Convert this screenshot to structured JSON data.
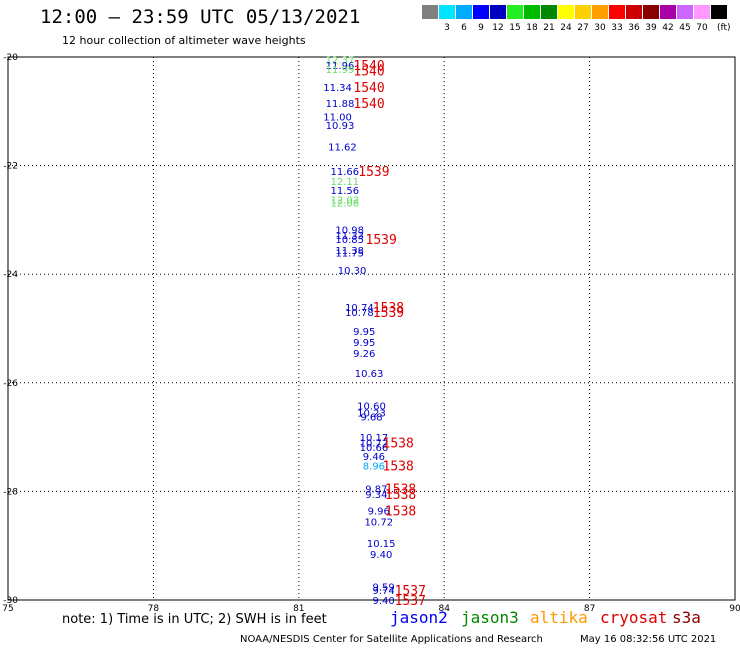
{
  "header": {
    "title": "12:00 — 23:59 UTC 05/13/2021",
    "subtitle": "12 hour collection of altimeter wave heights"
  },
  "colorbar": {
    "colors": [
      "#808080",
      "#00e5ff",
      "#00aaff",
      "#0000ff",
      "#0000c0",
      "#22ee22",
      "#00bb00",
      "#008800",
      "#ffff00",
      "#ffd000",
      "#ffa000",
      "#ff0000",
      "#cc0000",
      "#880000",
      "#aa00aa",
      "#cc66ff",
      "#ff99ff",
      "#000000"
    ],
    "labels": [
      "3",
      "6",
      "9",
      "12",
      "15",
      "18",
      "21",
      "24",
      "27",
      "30",
      "33",
      "36",
      "39",
      "42",
      "45",
      "70",
      "(ft)"
    ]
  },
  "notes": {
    "note": "note: 1) Time is in UTC; 2) SWH is in feet",
    "satellites": [
      {
        "name": "jason2",
        "color": "#0000ff"
      },
      {
        "name": "jason3",
        "color": "#008800"
      },
      {
        "name": "altika",
        "color": "#ff9900"
      },
      {
        "name": "cryosat",
        "color": "#dd0000"
      },
      {
        "name": "s3a",
        "color": "#880000"
      }
    ],
    "footer_left": "NOAA/NESDIS Center for Satellite Applications and Research",
    "footer_right": "May 16 08:32:56 UTC 2021"
  },
  "chart_data": {
    "type": "scatter",
    "title": "12:00 — 23:59 UTC 05/13/2021",
    "subtitle": "12 hour collection of altimeter wave heights",
    "x_ticks": [
      75,
      78,
      81,
      84,
      87,
      90
    ],
    "y_ticks": [
      -20,
      -22,
      -24,
      -26,
      -28,
      -30
    ],
    "xlim": [
      75,
      90
    ],
    "ylim": [
      -30,
      -20
    ],
    "grid": true,
    "swh_labels": [
      {
        "lon": 81.85,
        "lat": -20.05,
        "text": "12.37",
        "color": "#66dd66"
      },
      {
        "lon": 81.85,
        "lat": -20.15,
        "text": "11.96",
        "color": "#0000cc"
      },
      {
        "lon": 81.85,
        "lat": -20.22,
        "text": "11.99",
        "color": "#66dd66"
      },
      {
        "lon": 81.8,
        "lat": -20.55,
        "text": "11.34",
        "color": "#0000cc"
      },
      {
        "lon": 81.85,
        "lat": -20.85,
        "text": "11.88",
        "color": "#0000cc"
      },
      {
        "lon": 81.8,
        "lat": -21.1,
        "text": "11.00",
        "color": "#0000cc"
      },
      {
        "lon": 81.85,
        "lat": -21.25,
        "text": "10.93",
        "color": "#0000cc"
      },
      {
        "lon": 81.9,
        "lat": -21.65,
        "text": "11.62",
        "color": "#0000cc"
      },
      {
        "lon": 81.95,
        "lat": -22.1,
        "text": "11.66",
        "color": "#0000cc"
      },
      {
        "lon": 81.95,
        "lat": -22.28,
        "text": "12.11",
        "color": "#66dd66"
      },
      {
        "lon": 81.95,
        "lat": -22.45,
        "text": "11.56",
        "color": "#0000cc"
      },
      {
        "lon": 81.95,
        "lat": -22.62,
        "text": "12.02",
        "color": "#66dd66"
      },
      {
        "lon": 81.95,
        "lat": -22.68,
        "text": "12.08",
        "color": "#66dd66"
      },
      {
        "lon": 82.05,
        "lat": -23.18,
        "text": "10.98",
        "color": "#0000cc"
      },
      {
        "lon": 82.05,
        "lat": -23.28,
        "text": "11.33",
        "color": "#0000cc"
      },
      {
        "lon": 82.05,
        "lat": -23.35,
        "text": "10.85",
        "color": "#0000cc"
      },
      {
        "lon": 82.05,
        "lat": -23.55,
        "text": "11.38",
        "color": "#0000cc"
      },
      {
        "lon": 82.05,
        "lat": -23.6,
        "text": "11.75",
        "color": "#0000cc"
      },
      {
        "lon": 82.1,
        "lat": -23.92,
        "text": "10.30",
        "color": "#0000cc"
      },
      {
        "lon": 82.25,
        "lat": -24.6,
        "text": "10.74",
        "color": "#0000cc"
      },
      {
        "lon": 82.25,
        "lat": -24.7,
        "text": "10.78",
        "color": "#0000cc"
      },
      {
        "lon": 82.35,
        "lat": -25.05,
        "text": "9.95",
        "color": "#0000cc"
      },
      {
        "lon": 82.35,
        "lat": -25.25,
        "text": "9.95",
        "color": "#0000cc"
      },
      {
        "lon": 82.35,
        "lat": -25.45,
        "text": "9.26",
        "color": "#0000cc"
      },
      {
        "lon": 82.45,
        "lat": -25.82,
        "text": "10.63",
        "color": "#0000cc"
      },
      {
        "lon": 82.5,
        "lat": -26.42,
        "text": "10.60",
        "color": "#0000cc"
      },
      {
        "lon": 82.5,
        "lat": -26.55,
        "text": "10.23",
        "color": "#0000cc"
      },
      {
        "lon": 82.5,
        "lat": -26.62,
        "text": "9.68",
        "color": "#0000cc"
      },
      {
        "lon": 82.55,
        "lat": -27.0,
        "text": "10.17",
        "color": "#0000cc"
      },
      {
        "lon": 82.55,
        "lat": -27.1,
        "text": "10.72",
        "color": "#0000cc"
      },
      {
        "lon": 82.55,
        "lat": -27.18,
        "text": "10.66",
        "color": "#0000cc"
      },
      {
        "lon": 82.55,
        "lat": -27.35,
        "text": "9.46",
        "color": "#0000cc"
      },
      {
        "lon": 82.55,
        "lat": -27.52,
        "text": "8.96",
        "color": "#00aaff"
      },
      {
        "lon": 82.6,
        "lat": -27.95,
        "text": "9.87",
        "color": "#0000cc"
      },
      {
        "lon": 82.6,
        "lat": -28.05,
        "text": "9.34",
        "color": "#0000cc"
      },
      {
        "lon": 82.65,
        "lat": -28.35,
        "text": "9.96",
        "color": "#0000cc"
      },
      {
        "lon": 82.65,
        "lat": -28.55,
        "text": "10.72",
        "color": "#0000cc"
      },
      {
        "lon": 82.7,
        "lat": -28.95,
        "text": "10.15",
        "color": "#0000cc"
      },
      {
        "lon": 82.7,
        "lat": -29.15,
        "text": "9.40",
        "color": "#0000cc"
      },
      {
        "lon": 82.75,
        "lat": -29.75,
        "text": "9.59",
        "color": "#0000cc"
      },
      {
        "lon": 82.75,
        "lat": -29.82,
        "text": "9.74",
        "color": "#0000cc"
      },
      {
        "lon": 82.75,
        "lat": -30.0,
        "text": "9.40",
        "color": "#0000cc"
      }
    ],
    "time_labels": [
      {
        "lon": 82.45,
        "lat": -20.15,
        "text": "1540",
        "color": "#dd0000"
      },
      {
        "lon": 82.45,
        "lat": -20.25,
        "text": "1540",
        "color": "#dd0000"
      },
      {
        "lon": 82.45,
        "lat": -20.55,
        "text": "1540",
        "color": "#dd0000"
      },
      {
        "lon": 82.45,
        "lat": -20.85,
        "text": "1540",
        "color": "#dd0000"
      },
      {
        "lon": 82.55,
        "lat": -22.1,
        "text": "1539",
        "color": "#dd0000"
      },
      {
        "lon": 82.7,
        "lat": -23.35,
        "text": "1539",
        "color": "#dd0000"
      },
      {
        "lon": 82.85,
        "lat": -24.6,
        "text": "1538",
        "color": "#dd0000"
      },
      {
        "lon": 82.85,
        "lat": -24.7,
        "text": "1539",
        "color": "#dd0000"
      },
      {
        "lon": 83.05,
        "lat": -27.1,
        "text": "1538",
        "color": "#dd0000"
      },
      {
        "lon": 83.05,
        "lat": -27.52,
        "text": "1538",
        "color": "#dd0000"
      },
      {
        "lon": 83.1,
        "lat": -27.95,
        "text": "1538",
        "color": "#dd0000"
      },
      {
        "lon": 83.1,
        "lat": -28.05,
        "text": "1538",
        "color": "#dd0000"
      },
      {
        "lon": 83.1,
        "lat": -28.35,
        "text": "1538",
        "color": "#dd0000"
      },
      {
        "lon": 83.3,
        "lat": -29.82,
        "text": "1537",
        "color": "#dd0000"
      },
      {
        "lon": 83.3,
        "lat": -30.0,
        "text": "1537",
        "color": "#dd0000"
      }
    ]
  }
}
